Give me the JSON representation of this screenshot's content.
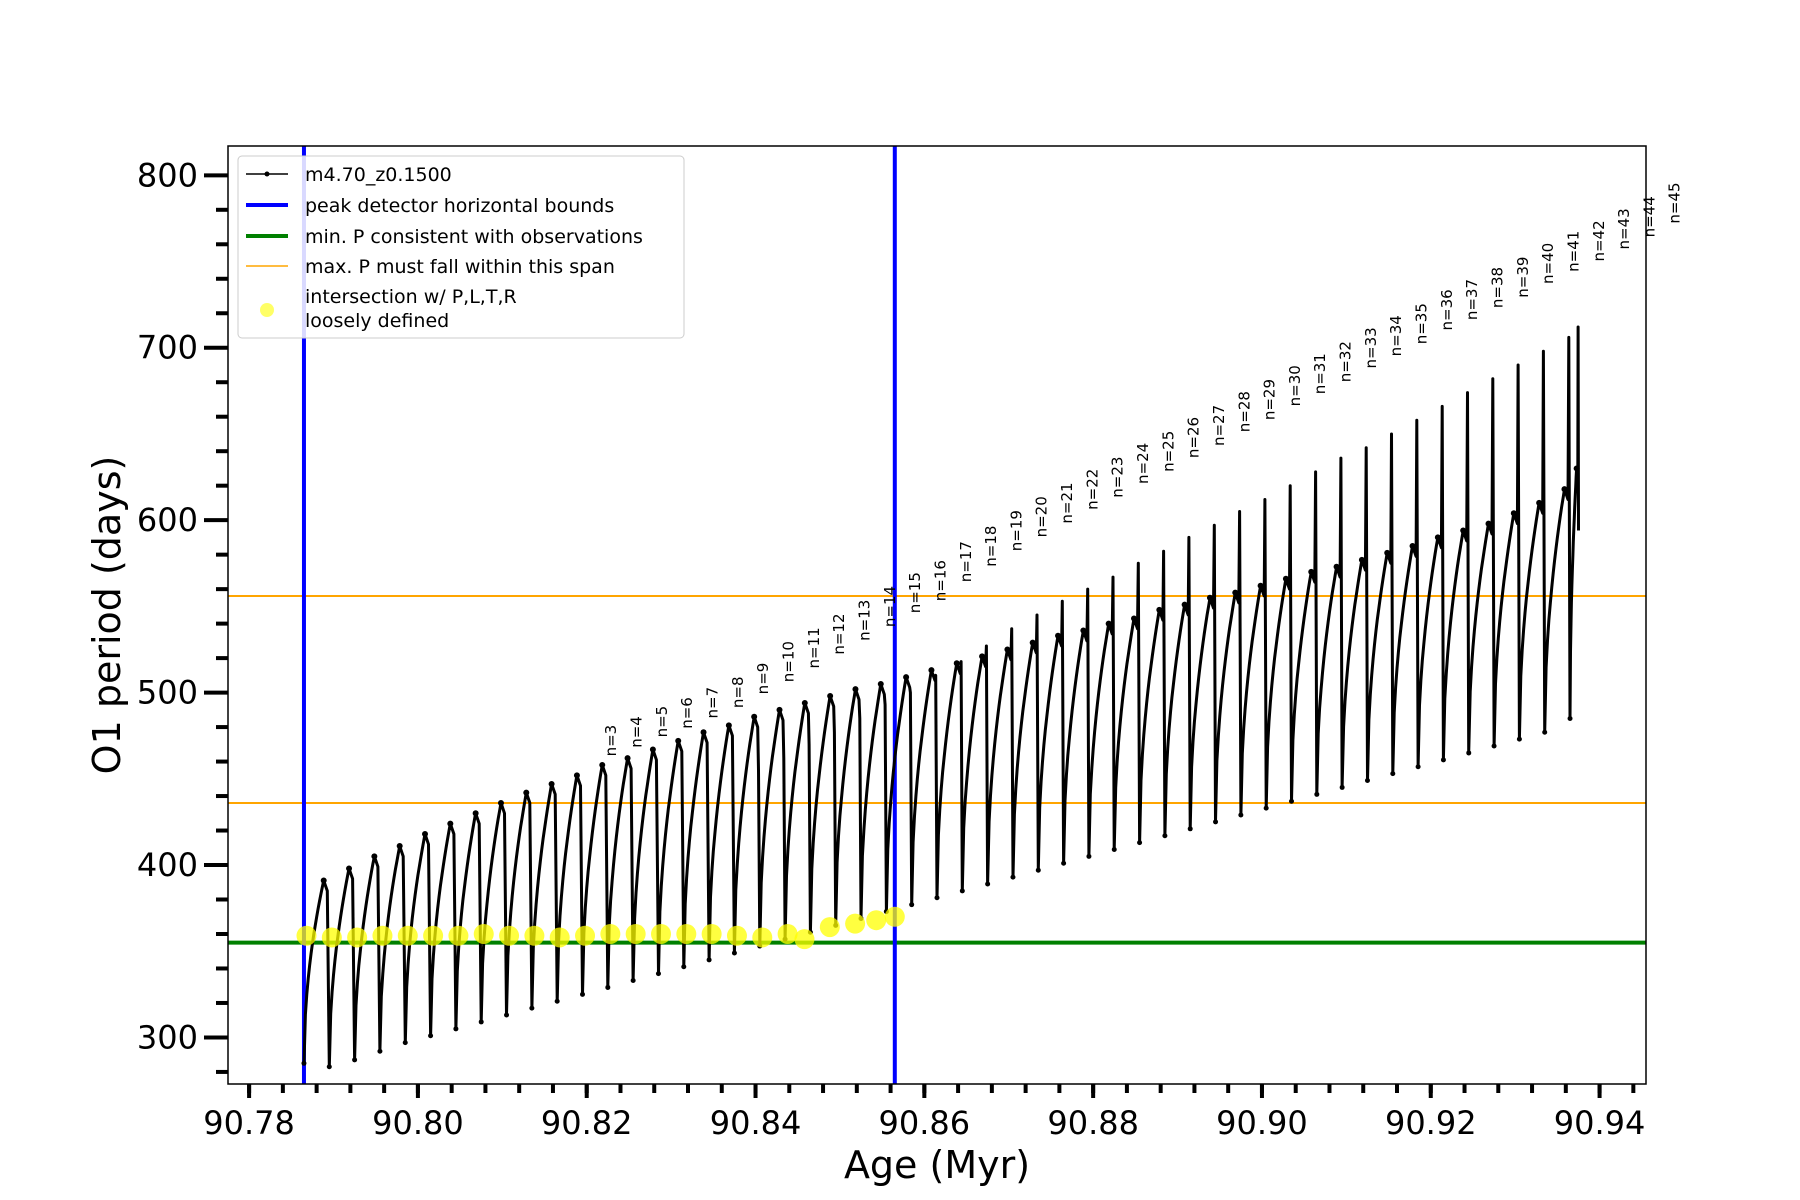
{
  "chart_data": {
    "type": "line",
    "xlabel": "Age (Myr)",
    "ylabel": "O1 period (days)",
    "xlim": [
      90.7775,
      90.9455
    ],
    "ylim": [
      273,
      817
    ],
    "x_ticks": [
      "90.78",
      "90.80",
      "90.82",
      "90.84",
      "90.86",
      "90.88",
      "90.90",
      "90.92",
      "90.94"
    ],
    "x_tick_values": [
      90.78,
      90.8,
      90.82,
      90.84,
      90.86,
      90.88,
      90.9,
      90.92,
      90.94
    ],
    "y_ticks": [
      "300",
      "400",
      "500",
      "600",
      "700",
      "800"
    ],
    "y_tick_values": [
      300,
      400,
      500,
      600,
      700,
      800
    ],
    "grid": false,
    "legend_position": "top-left",
    "legend": [
      {
        "label": "m4.70_z0.1500",
        "color": "#000000",
        "kind": "line-marker"
      },
      {
        "label": "peak detector horizontal bounds",
        "color": "#0000ff",
        "kind": "line"
      },
      {
        "label": "min. P consistent with observations",
        "color": "#008000",
        "kind": "line"
      },
      {
        "label": "max. P must fall within this span",
        "color": "#ffa500",
        "kind": "line"
      },
      {
        "label_lines": [
          "intersection w/ P,L,T,R",
          "loosely defined"
        ],
        "color": "#ffff00",
        "kind": "marker"
      }
    ],
    "vertical_lines": [
      {
        "x": 90.7865,
        "color": "#0000ff",
        "series": "peak detector horizontal bounds"
      },
      {
        "x": 90.8565,
        "color": "#0000ff",
        "series": "peak detector horizontal bounds"
      }
    ],
    "horizontal_lines": [
      {
        "y": 355,
        "color": "#008000",
        "series": "min. P consistent with observations"
      },
      {
        "y": 436,
        "color": "#ffa500",
        "series": "max. P must fall within this span"
      },
      {
        "y": 556,
        "color": "#ffa500",
        "series": "max. P must fall within this span"
      }
    ],
    "series": [
      {
        "name": "m4.70_z0.1500",
        "color": "#000000",
        "description_of_shape": "repeating thermal pulses; each pulse rises to a local maximum then drops sharply to a minimum",
        "pulse_x": [
          90.7865,
          90.7895,
          90.7925,
          90.7955,
          90.7985,
          90.8015,
          90.8045,
          90.8075,
          90.8105,
          90.8135,
          90.8165,
          90.8195,
          90.8225,
          90.8255,
          90.8285,
          90.8315,
          90.8345,
          90.8375,
          90.8405,
          90.8435,
          90.8465,
          90.8495,
          90.8525,
          90.8555,
          90.8585,
          90.8615,
          90.8645,
          90.8675,
          90.8705,
          90.8735,
          90.8765,
          90.8795,
          90.8825,
          90.8855,
          90.8885,
          90.8915,
          90.8945,
          90.8975,
          90.9005,
          90.9035,
          90.9065,
          90.9095,
          90.9125,
          90.9155,
          90.9185,
          90.9215,
          90.9245,
          90.9275,
          90.9305,
          90.9335,
          90.9365
        ],
        "envelope_max": [
          391,
          398,
          405,
          411,
          418,
          424,
          430,
          436,
          442,
          447,
          452,
          458,
          462,
          467,
          472,
          477,
          481,
          486,
          490,
          494,
          498,
          502,
          505,
          509,
          513,
          517,
          521,
          525,
          529,
          533,
          536,
          540,
          543,
          548,
          551,
          555,
          558,
          562,
          566,
          570,
          573,
          577,
          581,
          585,
          590,
          594,
          598,
          604,
          610,
          618,
          630
        ],
        "spike_top": [
          null,
          null,
          null,
          null,
          null,
          null,
          null,
          null,
          null,
          null,
          null,
          null,
          null,
          null,
          null,
          null,
          null,
          455,
          462,
          470,
          477,
          485,
          493,
          500,
          510,
          518,
          527,
          537,
          545,
          553,
          560,
          567,
          575,
          582,
          590,
          597,
          605,
          612,
          620,
          628,
          636,
          642,
          650,
          658,
          666,
          674,
          682,
          690,
          698,
          706,
          712
        ],
        "envelope_min": [
          285,
          283,
          287,
          292,
          297,
          301,
          305,
          309,
          313,
          317,
          321,
          325,
          329,
          333,
          337,
          341,
          345,
          349,
          353,
          357,
          361,
          365,
          369,
          373,
          377,
          381,
          385,
          389,
          393,
          397,
          401,
          405,
          409,
          413,
          417,
          421,
          425,
          429,
          433,
          437,
          441,
          445,
          449,
          453,
          457,
          461,
          465,
          469,
          473,
          477,
          485
        ],
        "final_point": {
          "x": 90.9375,
          "y": 594
        }
      },
      {
        "name": "intersection w/ P,L,T,R loosely defined",
        "color": "#ffff00",
        "points": [
          {
            "x": 90.7868,
            "y": 359
          },
          {
            "x": 90.7898,
            "y": 358
          },
          {
            "x": 90.7928,
            "y": 358
          },
          {
            "x": 90.7958,
            "y": 359
          },
          {
            "x": 90.7988,
            "y": 359
          },
          {
            "x": 90.8018,
            "y": 359
          },
          {
            "x": 90.8048,
            "y": 359
          },
          {
            "x": 90.8078,
            "y": 360
          },
          {
            "x": 90.8108,
            "y": 359
          },
          {
            "x": 90.8138,
            "y": 359
          },
          {
            "x": 90.8168,
            "y": 358
          },
          {
            "x": 90.8198,
            "y": 359
          },
          {
            "x": 90.8228,
            "y": 360
          },
          {
            "x": 90.8258,
            "y": 360
          },
          {
            "x": 90.8288,
            "y": 360
          },
          {
            "x": 90.8318,
            "y": 360
          },
          {
            "x": 90.8348,
            "y": 360
          },
          {
            "x": 90.8378,
            "y": 359
          },
          {
            "x": 90.8408,
            "y": 358
          },
          {
            "x": 90.8438,
            "y": 360
          },
          {
            "x": 90.8458,
            "y": 357
          },
          {
            "x": 90.8488,
            "y": 364
          },
          {
            "x": 90.8518,
            "y": 366
          },
          {
            "x": 90.8543,
            "y": 368
          },
          {
            "x": 90.8565,
            "y": 370
          }
        ]
      }
    ],
    "annotations": [
      {
        "label": "n=3",
        "x": 90.8235,
        "y": 463
      },
      {
        "label": "n=4",
        "x": 90.8265,
        "y": 468
      },
      {
        "label": "n=5",
        "x": 90.8295,
        "y": 474
      },
      {
        "label": "n=6",
        "x": 90.8325,
        "y": 479
      },
      {
        "label": "n=7",
        "x": 90.8355,
        "y": 485
      },
      {
        "label": "n=8",
        "x": 90.8385,
        "y": 491
      },
      {
        "label": "n=9",
        "x": 90.8415,
        "y": 499
      },
      {
        "label": "n=10",
        "x": 90.8445,
        "y": 506
      },
      {
        "label": "n=11",
        "x": 90.8475,
        "y": 514
      },
      {
        "label": "n=12",
        "x": 90.8505,
        "y": 522
      },
      {
        "label": "n=13",
        "x": 90.8535,
        "y": 530
      },
      {
        "label": "n=14",
        "x": 90.8565,
        "y": 538
      },
      {
        "label": "n=15",
        "x": 90.8595,
        "y": 546
      },
      {
        "label": "n=16",
        "x": 90.8625,
        "y": 553
      },
      {
        "label": "n=17",
        "x": 90.8655,
        "y": 564
      },
      {
        "label": "n=18",
        "x": 90.8685,
        "y": 573
      },
      {
        "label": "n=19",
        "x": 90.8715,
        "y": 582
      },
      {
        "label": "n=20",
        "x": 90.8745,
        "y": 590
      },
      {
        "label": "n=21",
        "x": 90.8775,
        "y": 598
      },
      {
        "label": "n=22",
        "x": 90.8805,
        "y": 606
      },
      {
        "label": "n=23",
        "x": 90.8835,
        "y": 613
      },
      {
        "label": "n=24",
        "x": 90.8865,
        "y": 621
      },
      {
        "label": "n=25",
        "x": 90.8895,
        "y": 628
      },
      {
        "label": "n=26",
        "x": 90.8925,
        "y": 636
      },
      {
        "label": "n=27",
        "x": 90.8955,
        "y": 643
      },
      {
        "label": "n=28",
        "x": 90.8985,
        "y": 651
      },
      {
        "label": "n=29",
        "x": 90.9015,
        "y": 658
      },
      {
        "label": "n=30",
        "x": 90.9045,
        "y": 666
      },
      {
        "label": "n=31",
        "x": 90.9075,
        "y": 673
      },
      {
        "label": "n=32",
        "x": 90.9105,
        "y": 680
      },
      {
        "label": "n=33",
        "x": 90.9135,
        "y": 688
      },
      {
        "label": "n=34",
        "x": 90.9165,
        "y": 695
      },
      {
        "label": "n=35",
        "x": 90.9195,
        "y": 702
      },
      {
        "label": "n=36",
        "x": 90.9225,
        "y": 710
      },
      {
        "label": "n=37",
        "x": 90.9255,
        "y": 716
      },
      {
        "label": "n=38",
        "x": 90.9285,
        "y": 723
      },
      {
        "label": "n=39",
        "x": 90.9315,
        "y": 729
      },
      {
        "label": "n=40",
        "x": 90.9345,
        "y": 737
      },
      {
        "label": "n=41",
        "x": 90.9375,
        "y": 744
      },
      {
        "label": "n=42",
        "x": 90.9405,
        "y": 750
      },
      {
        "label": "n=43",
        "x": 90.9435,
        "y": 757
      },
      {
        "label": "n=44",
        "x": 90.9465,
        "y": 764
      },
      {
        "label": "n=45",
        "x": 90.9495,
        "y": 772
      }
    ]
  }
}
